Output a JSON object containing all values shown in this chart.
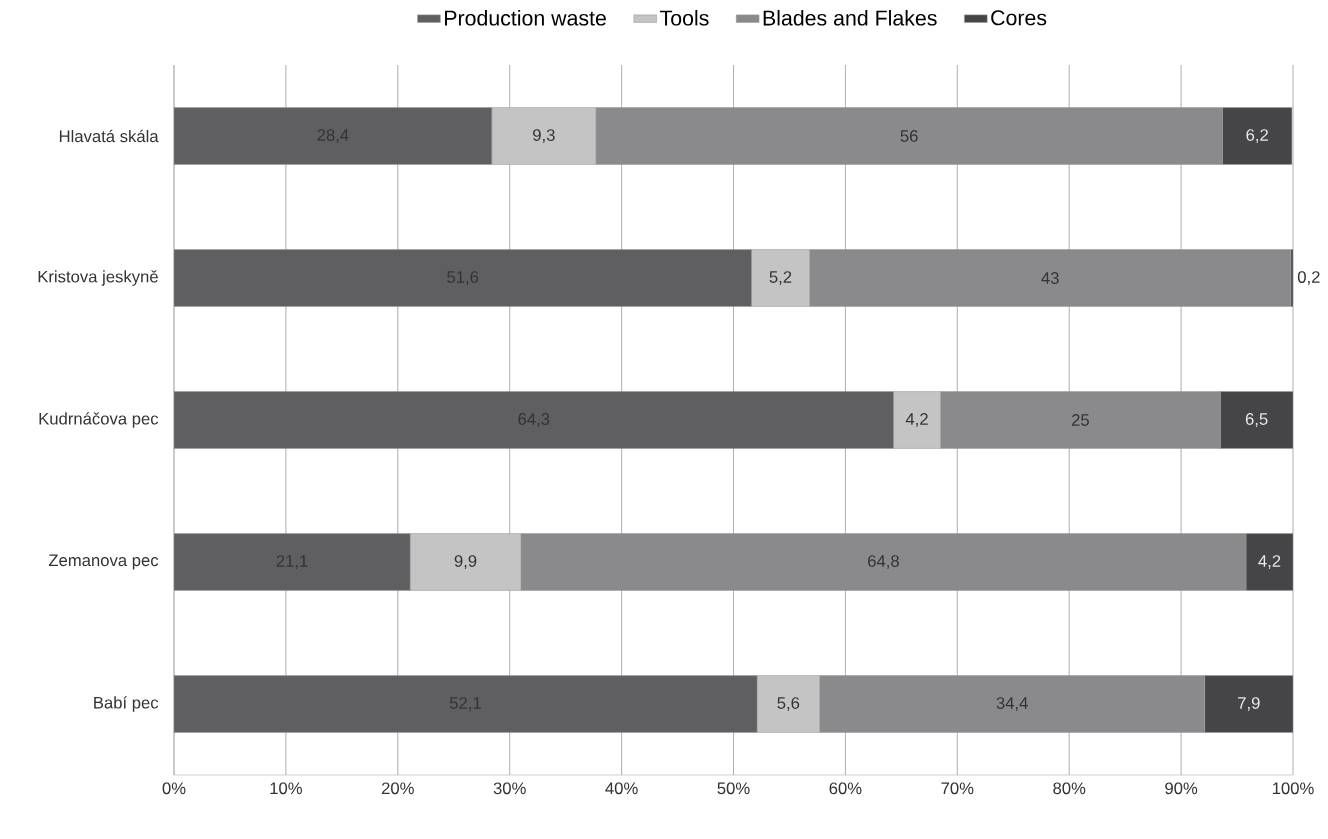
{
  "chart_data": {
    "type": "bar",
    "orientation": "horizontal",
    "stacked": true,
    "legend": "top",
    "grid": "x",
    "categories": [
      "Hlavatá skála",
      "Kristova jeskyně",
      "Kudrnáčova pec",
      "Zemanova pec",
      "Babí pec"
    ],
    "series": [
      {
        "name": "Production waste",
        "color": "#5f5f61",
        "values": [
          28.4,
          51.6,
          64.3,
          21.1,
          52.1
        ],
        "value_labels": [
          "28,4",
          "51,6",
          "64,3",
          "21,1",
          "52,1"
        ]
      },
      {
        "name": "Tools",
        "color": "#c4c4c4",
        "values": [
          9.3,
          5.2,
          4.2,
          9.9,
          5.6
        ],
        "value_labels": [
          "9,3",
          "5,2",
          "4,2",
          "9,9",
          "5,6"
        ]
      },
      {
        "name": "Blades and Flakes",
        "color": "#8a8a8c",
        "values": [
          56,
          43,
          25,
          64.8,
          34.4
        ],
        "value_labels": [
          "56",
          "43",
          "25",
          "64,8",
          "34,4"
        ]
      },
      {
        "name": "Cores",
        "color": "#454547",
        "values": [
          6.2,
          0.2,
          6.5,
          4.2,
          7.9
        ],
        "value_labels": [
          "6,2",
          "0,2",
          "6,5",
          "4,2",
          "7,9"
        ]
      }
    ],
    "xlim": [
      0,
      100
    ],
    "xticks": [
      {
        "value": 0,
        "label": "0%"
      },
      {
        "value": 10,
        "label": "10%"
      },
      {
        "value": 20,
        "label": "20%"
      },
      {
        "value": 30,
        "label": "30%"
      },
      {
        "value": 40,
        "label": "40%"
      },
      {
        "value": 50,
        "label": "50%"
      },
      {
        "value": 60,
        "label": "60%"
      },
      {
        "value": 70,
        "label": "70%"
      },
      {
        "value": 80,
        "label": "80%"
      },
      {
        "value": 90,
        "label": "90%"
      },
      {
        "value": 100,
        "label": "100%"
      }
    ]
  }
}
